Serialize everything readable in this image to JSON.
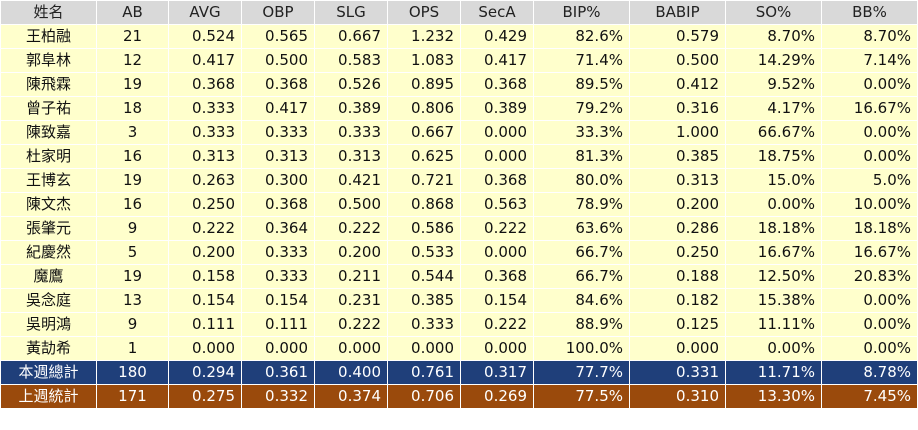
{
  "headers": [
    "姓名",
    "AB",
    "AVG",
    "OBP",
    "SLG",
    "OPS",
    "SecA",
    "BIP%",
    "BABIP",
    "SO%",
    "BB%"
  ],
  "rows": [
    [
      "王柏融",
      "21",
      "0.524",
      "0.565",
      "0.667",
      "1.232",
      "0.429",
      "82.6%",
      "0.579",
      "8.70%",
      "8.70%"
    ],
    [
      "郭阜林",
      "12",
      "0.417",
      "0.500",
      "0.583",
      "1.083",
      "0.417",
      "71.4%",
      "0.500",
      "14.29%",
      "7.14%"
    ],
    [
      "陳飛霖",
      "19",
      "0.368",
      "0.368",
      "0.526",
      "0.895",
      "0.368",
      "89.5%",
      "0.412",
      "9.52%",
      "0.00%"
    ],
    [
      "曾子祐",
      "18",
      "0.333",
      "0.417",
      "0.389",
      "0.806",
      "0.389",
      "79.2%",
      "0.316",
      "4.17%",
      "16.67%"
    ],
    [
      "陳致嘉",
      "3",
      "0.333",
      "0.333",
      "0.333",
      "0.667",
      "0.000",
      "33.3%",
      "1.000",
      "66.67%",
      "0.00%"
    ],
    [
      "杜家明",
      "16",
      "0.313",
      "0.313",
      "0.313",
      "0.625",
      "0.000",
      "81.3%",
      "0.385",
      "18.75%",
      "0.00%"
    ],
    [
      "王博玄",
      "19",
      "0.263",
      "0.300",
      "0.421",
      "0.721",
      "0.368",
      "80.0%",
      "0.313",
      "15.0%",
      "5.0%"
    ],
    [
      "陳文杰",
      "16",
      "0.250",
      "0.368",
      "0.500",
      "0.868",
      "0.563",
      "78.9%",
      "0.200",
      "0.00%",
      "10.00%"
    ],
    [
      "張肇元",
      "9",
      "0.222",
      "0.364",
      "0.222",
      "0.586",
      "0.222",
      "63.6%",
      "0.286",
      "18.18%",
      "18.18%"
    ],
    [
      "紀慶然",
      "5",
      "0.200",
      "0.333",
      "0.200",
      "0.533",
      "0.000",
      "66.7%",
      "0.250",
      "16.67%",
      "16.67%"
    ],
    [
      "魔鷹",
      "19",
      "0.158",
      "0.333",
      "0.211",
      "0.544",
      "0.368",
      "66.7%",
      "0.188",
      "12.50%",
      "20.83%"
    ],
    [
      "吳念庭",
      "13",
      "0.154",
      "0.154",
      "0.231",
      "0.385",
      "0.154",
      "84.6%",
      "0.182",
      "15.38%",
      "0.00%"
    ],
    [
      "吳明鴻",
      "9",
      "0.111",
      "0.111",
      "0.222",
      "0.333",
      "0.222",
      "88.9%",
      "0.125",
      "11.11%",
      "0.00%"
    ],
    [
      "黃劼希",
      "1",
      "0.000",
      "0.000",
      "0.000",
      "0.000",
      "0.000",
      "100.0%",
      "0.000",
      "0.00%",
      "0.00%"
    ]
  ],
  "totals": [
    {
      "key": "this_week",
      "values": [
        "本週總計",
        "180",
        "0.294",
        "0.361",
        "0.400",
        "0.761",
        "0.317",
        "77.7%",
        "0.331",
        "11.71%",
        "8.78%"
      ]
    },
    {
      "key": "last_week",
      "values": [
        "上週統計",
        "171",
        "0.275",
        "0.332",
        "0.374",
        "0.706",
        "0.269",
        "77.5%",
        "0.310",
        "13.30%",
        "7.45%"
      ]
    }
  ],
  "colors": {
    "header_bg": "#d9d9d9",
    "row_bg": "#ffffcc",
    "this_week_total_bg": "#1f3f7a",
    "last_week_total_bg": "#9a4a0c",
    "total_text": "#ffffff"
  }
}
